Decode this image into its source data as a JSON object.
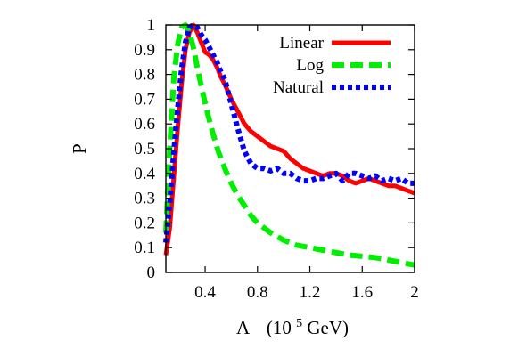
{
  "chart_data": {
    "type": "line",
    "ylabel": "P",
    "xlabel": {
      "symbol": "Λ",
      "unit_prefix": "(10",
      "unit_exponent": "5",
      "unit_suffix": " GeV)"
    },
    "xlim": [
      0.1,
      2.0
    ],
    "ylim": [
      0,
      1
    ],
    "xticks": [
      0.4,
      0.8,
      1.2,
      1.6,
      2.0
    ],
    "xtick_labels": [
      "0.4",
      "0.8",
      "1.2",
      "1.6",
      "2"
    ],
    "yticks": [
      0,
      0.1,
      0.2,
      0.3,
      0.4,
      0.5,
      0.6,
      0.7,
      0.8,
      0.9,
      1
    ],
    "ytick_labels": [
      "0",
      "0.1",
      "0.2",
      "0.3",
      "0.4",
      "0.5",
      "0.6",
      "0.7",
      "0.8",
      "0.9",
      "1"
    ],
    "grid": false,
    "legend_position": "top-right",
    "series": [
      {
        "name": "Linear",
        "color": "#ff0000",
        "style": "solid",
        "x": [
          0.1,
          0.13,
          0.16,
          0.19,
          0.22,
          0.25,
          0.28,
          0.31,
          0.34,
          0.37,
          0.4,
          0.43,
          0.46,
          0.49,
          0.52,
          0.55,
          0.6,
          0.65,
          0.7,
          0.75,
          0.8,
          0.85,
          0.9,
          0.95,
          1.0,
          1.05,
          1.1,
          1.15,
          1.2,
          1.25,
          1.3,
          1.35,
          1.4,
          1.45,
          1.5,
          1.55,
          1.6,
          1.65,
          1.7,
          1.75,
          1.8,
          1.85,
          1.9,
          1.95,
          2.0
        ],
        "y": [
          0.07,
          0.18,
          0.38,
          0.58,
          0.76,
          0.9,
          0.97,
          1.0,
          0.97,
          0.93,
          0.89,
          0.88,
          0.86,
          0.83,
          0.79,
          0.76,
          0.7,
          0.65,
          0.6,
          0.57,
          0.55,
          0.53,
          0.51,
          0.5,
          0.49,
          0.46,
          0.44,
          0.42,
          0.41,
          0.4,
          0.39,
          0.4,
          0.4,
          0.39,
          0.37,
          0.36,
          0.37,
          0.38,
          0.37,
          0.36,
          0.35,
          0.35,
          0.34,
          0.33,
          0.32
        ]
      },
      {
        "name": "Log",
        "color": "#00ee00",
        "style": "dashed",
        "x": [
          0.1,
          0.13,
          0.16,
          0.19,
          0.22,
          0.25,
          0.28,
          0.31,
          0.34,
          0.38,
          0.42,
          0.46,
          0.5,
          0.55,
          0.6,
          0.65,
          0.7,
          0.75,
          0.8,
          0.9,
          1.0,
          1.1,
          1.2,
          1.3,
          1.4,
          1.5,
          1.6,
          1.7,
          1.8,
          1.9,
          2.0
        ],
        "y": [
          0.16,
          0.5,
          0.78,
          0.92,
          0.99,
          1.0,
          0.97,
          0.91,
          0.83,
          0.73,
          0.64,
          0.56,
          0.49,
          0.42,
          0.36,
          0.31,
          0.27,
          0.23,
          0.2,
          0.16,
          0.13,
          0.11,
          0.1,
          0.09,
          0.08,
          0.07,
          0.065,
          0.06,
          0.05,
          0.04,
          0.03
        ]
      },
      {
        "name": "Natural",
        "color": "#0000ff",
        "style": "dotted",
        "x": [
          0.1,
          0.13,
          0.16,
          0.19,
          0.22,
          0.25,
          0.28,
          0.31,
          0.34,
          0.37,
          0.4,
          0.43,
          0.46,
          0.49,
          0.52,
          0.55,
          0.6,
          0.65,
          0.7,
          0.75,
          0.8,
          0.85,
          0.9,
          0.95,
          1.0,
          1.05,
          1.1,
          1.15,
          1.2,
          1.25,
          1.3,
          1.35,
          1.4,
          1.45,
          1.5,
          1.55,
          1.6,
          1.65,
          1.7,
          1.75,
          1.8,
          1.85,
          1.9,
          1.95,
          2.0
        ],
        "y": [
          0.12,
          0.28,
          0.48,
          0.66,
          0.82,
          0.93,
          0.99,
          1.0,
          0.99,
          0.96,
          0.94,
          0.91,
          0.88,
          0.85,
          0.81,
          0.78,
          0.68,
          0.58,
          0.49,
          0.44,
          0.42,
          0.42,
          0.41,
          0.42,
          0.4,
          0.4,
          0.38,
          0.37,
          0.37,
          0.38,
          0.38,
          0.39,
          0.4,
          0.37,
          0.4,
          0.4,
          0.39,
          0.38,
          0.39,
          0.37,
          0.38,
          0.37,
          0.38,
          0.36,
          0.36
        ]
      }
    ]
  }
}
